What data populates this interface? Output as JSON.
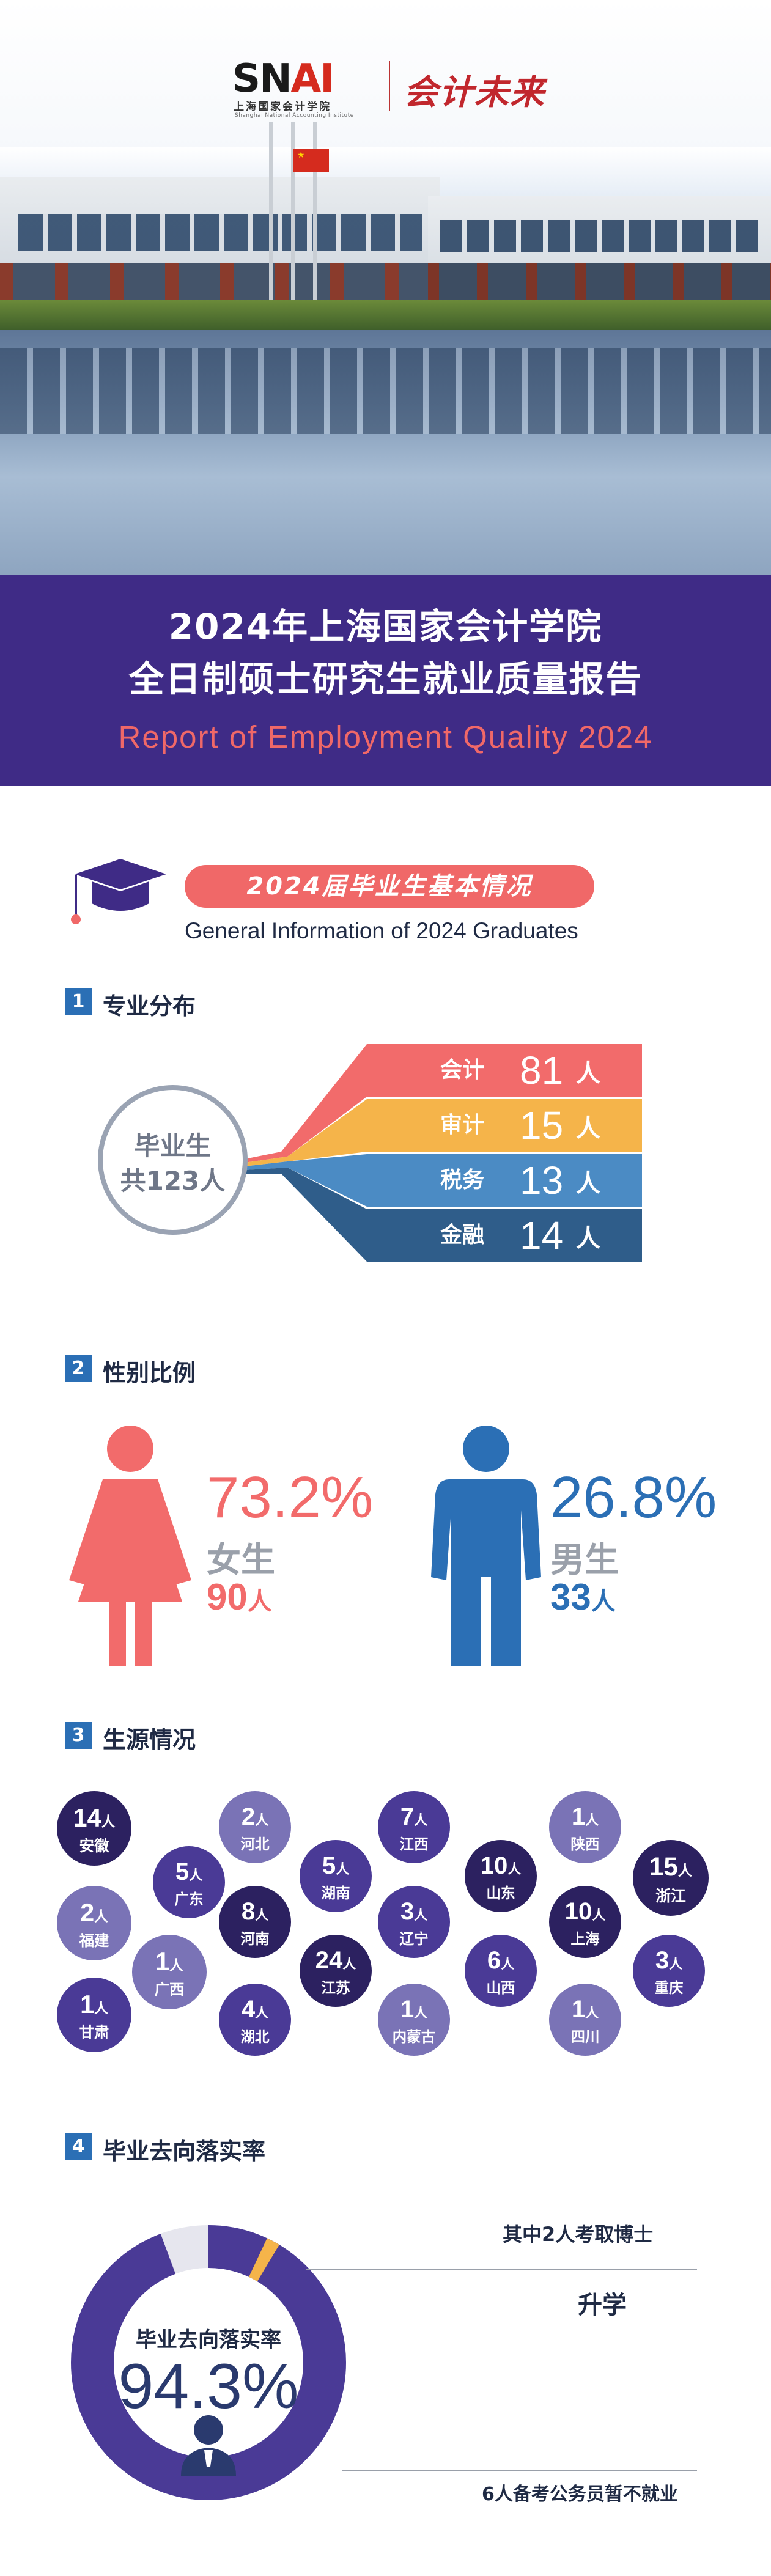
{
  "logo": {
    "mark_sn": "SN",
    "mark_ai": "AI",
    "institute_cn": "上海国家会计学院",
    "institute_en": "Shanghai National Accounting Institute",
    "slogan": "会计未来"
  },
  "title": {
    "line1": "2024年上海国家会计学院",
    "line2": "全日制硕士研究生就业质量报告",
    "en": "Report of Employment Quality 2024"
  },
  "section": {
    "title_cn": "2024届毕业生基本情况",
    "title_en": "General Information of 2024 Graduates"
  },
  "majors": {
    "num": "1",
    "heading": "专业分布",
    "total_line1": "毕业生",
    "total_line2": "共123人",
    "items": [
      {
        "name": "会计",
        "value": "81",
        "unit": "人",
        "color": "#f26b6b"
      },
      {
        "name": "审计",
        "value": "15",
        "unit": "人",
        "color": "#f5b44a"
      },
      {
        "name": "税务",
        "value": "13",
        "unit": "人",
        "color": "#4b8bc4"
      },
      {
        "name": "金融",
        "value": "14",
        "unit": "人",
        "color": "#2f5d8a"
      }
    ]
  },
  "gender": {
    "num": "2",
    "heading": "性别比例",
    "female": {
      "pct": "73.2%",
      "label": "女生",
      "count": "90",
      "unit": "人",
      "color": "#f26b6b"
    },
    "male": {
      "pct": "26.8%",
      "label": "男生",
      "count": "33",
      "unit": "人",
      "color": "#2b6fb5"
    }
  },
  "origin": {
    "num": "3",
    "heading": "生源情况",
    "items": [
      {
        "n": "14",
        "u": "人",
        "p": "安徽"
      },
      {
        "n": "5",
        "u": "人",
        "p": "广东"
      },
      {
        "n": "2",
        "u": "人",
        "p": "河北"
      },
      {
        "n": "5",
        "u": "人",
        "p": "湖南"
      },
      {
        "n": "7",
        "u": "人",
        "p": "江西"
      },
      {
        "n": "10",
        "u": "人",
        "p": "山东"
      },
      {
        "n": "1",
        "u": "人",
        "p": "陕西"
      },
      {
        "n": "15",
        "u": "人",
        "p": "浙江"
      },
      {
        "n": "2",
        "u": "人",
        "p": "福建"
      },
      {
        "n": "8",
        "u": "人",
        "p": "河南"
      },
      {
        "n": "3",
        "u": "人",
        "p": "辽宁"
      },
      {
        "n": "10",
        "u": "人",
        "p": "上海"
      },
      {
        "n": "3",
        "u": "人",
        "p": "重庆"
      },
      {
        "n": "1",
        "u": "人",
        "p": "广西"
      },
      {
        "n": "24",
        "u": "人",
        "p": "江苏"
      },
      {
        "n": "6",
        "u": "人",
        "p": "山西"
      },
      {
        "n": "1",
        "u": "人",
        "p": "甘肃"
      },
      {
        "n": "4",
        "u": "人",
        "p": "湖北"
      },
      {
        "n": "1",
        "u": "人",
        "p": "内蒙古"
      },
      {
        "n": "1",
        "u": "人",
        "p": "四川"
      }
    ]
  },
  "placement": {
    "num": "4",
    "heading": "毕业去向落实率",
    "center_label": "毕业去向落实率",
    "rate": "94.3%",
    "rate_value": 94.3,
    "further_study_value": 1.6,
    "annotation_phd": "其中2人考取博士",
    "annotation_study": "升学",
    "annotation_civil": "6人备考公务员暂不就业"
  }
}
